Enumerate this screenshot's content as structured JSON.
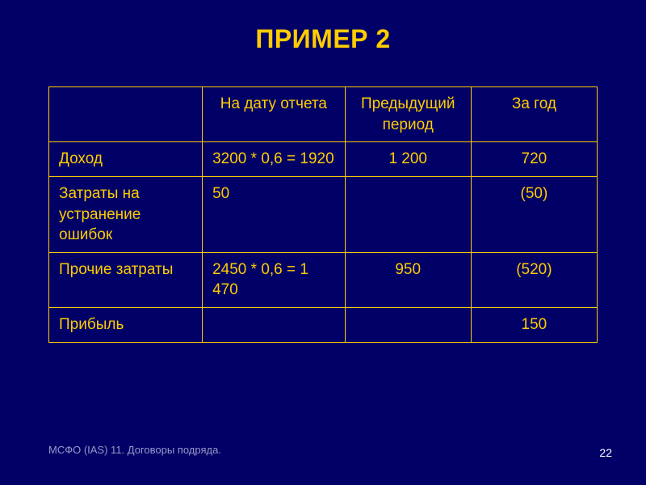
{
  "slide": {
    "background_color": "#000066",
    "title": "ПРИМЕР 2",
    "title_color": "#ffcc00",
    "title_fontsize": 32,
    "footer": "МСФО (IAS) 11. Договоры подряда.",
    "footer_color": "#9999cc",
    "footer_fontsize": 13,
    "page_number": "22",
    "page_number_color": "#ffffff",
    "page_number_fontsize": 14
  },
  "table": {
    "border_color": "#ffcc00",
    "border_width": 1.5,
    "header_text_color": "#ffcc00",
    "header_fontsize": 19,
    "cell_text_color": "#ffcc00",
    "cell_fontsize": 19,
    "columns": [
      {
        "label": "",
        "align": "left"
      },
      {
        "label": "На дату отчета",
        "align": "center"
      },
      {
        "label": "Предыдущий период",
        "align": "center"
      },
      {
        "label": "За год",
        "align": "center"
      }
    ],
    "rows": [
      {
        "label": "Доход",
        "cells": [
          "3200 * 0,6 = 1920",
          "1 200",
          "720"
        ],
        "aligns": [
          "left",
          "center",
          "center"
        ]
      },
      {
        "label": "Затраты на устранение ошибок",
        "cells": [
          "50",
          "",
          "(50)"
        ],
        "aligns": [
          "left",
          "center",
          "center"
        ]
      },
      {
        "label": "Прочие затраты",
        "cells": [
          "2450 * 0,6 = 1 470",
          "950",
          "(520)"
        ],
        "aligns": [
          "left",
          "center",
          "center"
        ]
      },
      {
        "label": "Прибыль",
        "cells": [
          "",
          "",
          "150"
        ],
        "aligns": [
          "left",
          "center",
          "center"
        ]
      }
    ]
  }
}
